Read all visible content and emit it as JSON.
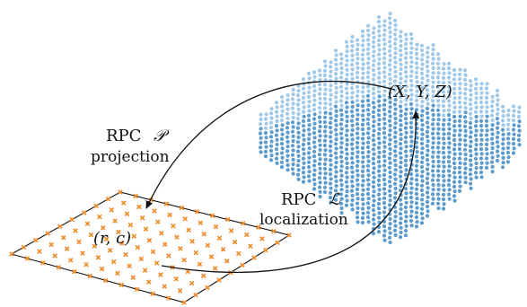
{
  "labels": {
    "projection_top_rpc": "RPC",
    "projection_top_symbol": "𝒫",
    "projection_bottom": "projection",
    "localization_top_rpc": "RPC",
    "localization_top_symbol": "ℒ",
    "localization_bottom": "localization",
    "image_point": "(r, c)",
    "ground_point": "(X, Y, Z)"
  },
  "colors": {
    "point_cloud": "#4a90c6",
    "point_cloud_light": "#9cc6e6",
    "image_cross": "#f08a24",
    "line": "#111111"
  },
  "icons": {
    "image_marker": "cross",
    "ground_marker": "dot"
  }
}
